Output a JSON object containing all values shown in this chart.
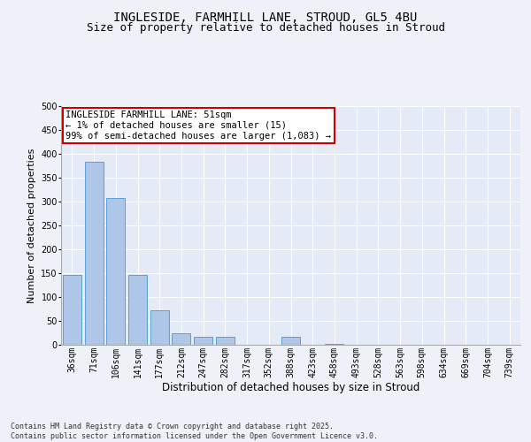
{
  "title_line1": "INGLESIDE, FARMHILL LANE, STROUD, GL5 4BU",
  "title_line2": "Size of property relative to detached houses in Stroud",
  "xlabel": "Distribution of detached houses by size in Stroud",
  "ylabel": "Number of detached properties",
  "categories": [
    "36sqm",
    "71sqm",
    "106sqm",
    "141sqm",
    "177sqm",
    "212sqm",
    "247sqm",
    "282sqm",
    "317sqm",
    "352sqm",
    "388sqm",
    "423sqm",
    "458sqm",
    "493sqm",
    "528sqm",
    "563sqm",
    "598sqm",
    "634sqm",
    "669sqm",
    "704sqm",
    "739sqm"
  ],
  "values": [
    147,
    383,
    308,
    147,
    72,
    25,
    17,
    17,
    0,
    0,
    17,
    0,
    1,
    0,
    0,
    0,
    0,
    0,
    0,
    0,
    0
  ],
  "bar_color": "#aec6e8",
  "bar_edgecolor": "#5a9fd4",
  "annotation_box_text": "INGLESIDE FARMHILL LANE: 51sqm\n← 1% of detached houses are smaller (15)\n99% of semi-detached houses are larger (1,083) →",
  "annotation_box_color": "#cc0000",
  "annotation_box_facecolor": "#ffffff",
  "background_color": "#eef2f8",
  "plot_background": "#e4eaf6",
  "footer_text": "Contains HM Land Registry data © Crown copyright and database right 2025.\nContains public sector information licensed under the Open Government Licence v3.0.",
  "ylim": [
    0,
    500
  ],
  "yticks": [
    0,
    50,
    100,
    150,
    200,
    250,
    300,
    350,
    400,
    450,
    500
  ],
  "grid_color": "#ffffff",
  "title_fontsize": 10,
  "subtitle_fontsize": 9,
  "tick_fontsize": 7,
  "annotation_fontsize": 7.5,
  "ylabel_fontsize": 8,
  "xlabel_fontsize": 8.5,
  "footer_fontsize": 6
}
